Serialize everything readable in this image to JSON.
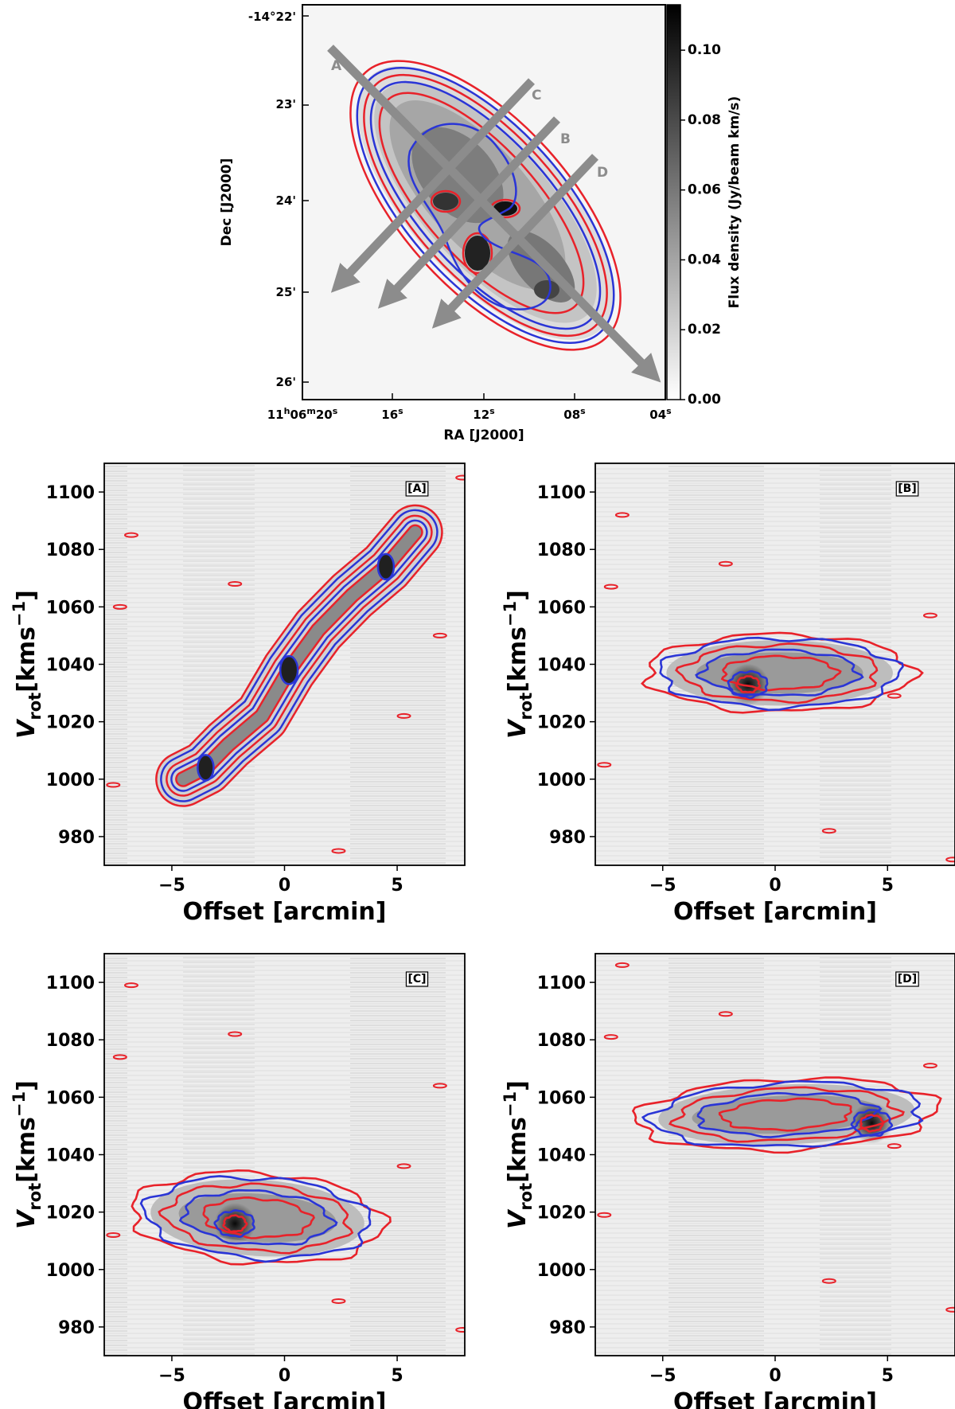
{
  "colors": {
    "red_contour": "#e8222a",
    "blue_contour": "#2a35d6",
    "arrow": "#8c8c8c",
    "background": "#ececec"
  },
  "chart_data": [
    {
      "type": "heatmap",
      "panel": "moment0-map",
      "xlabel": "RA [J2000]",
      "ylabel": "Dec [J2000]",
      "colorbar_label": "Flux density (Jy/beam km/s)",
      "colorbar_ticks": [
        "0.00",
        "0.02",
        "0.04",
        "0.06",
        "0.08",
        "0.10"
      ],
      "colorbar_range": [
        0.0,
        0.113
      ],
      "x_ticks": [
        "11h06m20s",
        "16s",
        "12s",
        "08s",
        "04s"
      ],
      "x_tick_parts": [
        {
          "pre": "11",
          "h": "h",
          "mid": "06",
          "m": "m",
          "num": "20",
          "s": "s"
        },
        {
          "num": "16",
          "s": "s"
        },
        {
          "num": "12",
          "s": "s"
        },
        {
          "num": "08",
          "s": "s"
        },
        {
          "num": "04",
          "s": "s"
        }
      ],
      "y_ticks": [
        "-14°22'",
        "23'",
        "24'",
        "25'",
        "26'"
      ],
      "slices": [
        {
          "label": "A",
          "orientation": "major axis"
        },
        {
          "label": "B",
          "orientation": "minor axis"
        },
        {
          "label": "C",
          "orientation": "minor axis, offset"
        },
        {
          "label": "D",
          "orientation": "minor axis, offset"
        }
      ]
    },
    {
      "type": "heatmap",
      "panel": "A",
      "tag": "[A]",
      "xlabel": "Offset [arcmin]",
      "ylabel": "V_rot [kms^-1]",
      "xlim": [
        -8,
        8
      ],
      "ylim": [
        970,
        1110
      ],
      "x_ticks": [
        -5,
        0,
        5
      ],
      "y_ticks": [
        980,
        1000,
        1020,
        1040,
        1060,
        1080,
        1100
      ],
      "ridge": [
        [
          -4.5,
          1000
        ],
        [
          -3.5,
          1004
        ],
        [
          -2.5,
          1012
        ],
        [
          -1.0,
          1022
        ],
        [
          0.2,
          1038
        ],
        [
          1.5,
          1052
        ],
        [
          3.0,
          1064
        ],
        [
          4.5,
          1074
        ],
        [
          5.8,
          1086
        ]
      ]
    },
    {
      "type": "heatmap",
      "panel": "B",
      "tag": "[B]",
      "xlabel": "Offset [arcmin]",
      "ylabel": "V_rot [kms^-1]",
      "xlim": [
        -8,
        8
      ],
      "ylim": [
        970,
        1110
      ],
      "x_ticks": [
        -5,
        0,
        5
      ],
      "y_ticks": [
        980,
        1000,
        1020,
        1040,
        1060,
        1080,
        1100
      ],
      "peak": {
        "offset": -1.2,
        "velocity": 1033
      }
    },
    {
      "type": "heatmap",
      "panel": "C",
      "tag": "[C]",
      "xlabel": "Offset [arcmin]",
      "ylabel": "V_rot [kms^-1]",
      "xlim": [
        -8,
        8
      ],
      "ylim": [
        970,
        1110
      ],
      "x_ticks": [
        -5,
        0,
        5
      ],
      "y_ticks": [
        980,
        1000,
        1020,
        1040,
        1060,
        1080,
        1100
      ],
      "peak": {
        "offset": -2.2,
        "velocity": 1016
      }
    },
    {
      "type": "heatmap",
      "panel": "D",
      "tag": "[D]",
      "xlabel": "Offset [arcmin]",
      "ylabel": "V_rot [kms^-1]",
      "xlim": [
        -8,
        8
      ],
      "ylim": [
        970,
        1110
      ],
      "x_ticks": [
        -5,
        0,
        5
      ],
      "y_ticks": [
        980,
        1000,
        1020,
        1040,
        1060,
        1080,
        1100
      ],
      "peak": {
        "offset": 4.3,
        "velocity": 1051
      }
    }
  ]
}
